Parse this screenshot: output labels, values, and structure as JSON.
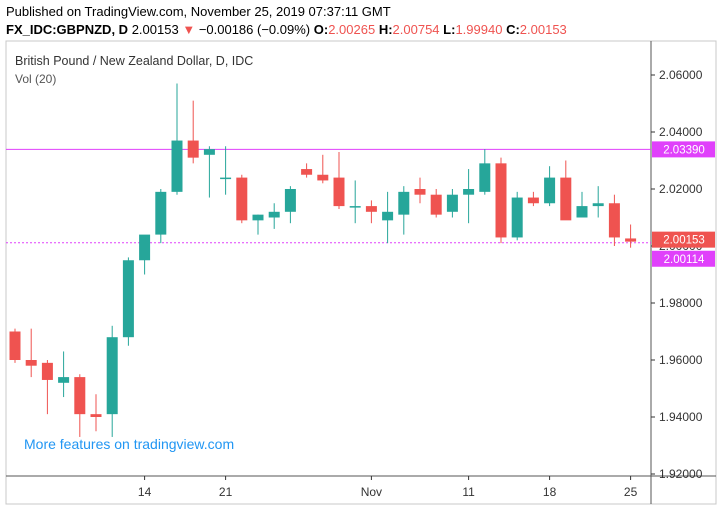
{
  "header": {
    "published": "Published on TradingView.com, November 25, 2019 07:37:11 GMT",
    "symbol": "FX_IDC:GBPNZD, D",
    "price": "2.00153",
    "arrow": "▼",
    "change": "−0.00186 (−0.09%)",
    "o_label": "O:",
    "o_value": "2.00265",
    "h_label": "H:",
    "h_value": "2.00754",
    "l_label": "L:",
    "l_value": "1.99940",
    "c_label": "C:",
    "c_value": "2.00153"
  },
  "overlay": {
    "title": "British Pound / New Zealand Dollar, D, IDC",
    "volume": "Vol (20)"
  },
  "watermark": "More features on tradingview.com",
  "colors": {
    "up": "#26a69a",
    "down": "#ef5350",
    "hline": "#e040fb",
    "axis": "#333333"
  },
  "chart_data": {
    "type": "candlestick",
    "title": "British Pound / New Zealand Dollar, D, IDC",
    "y_ticks": [
      "2.06000",
      "2.04000",
      "2.02000",
      "2.00000",
      "1.98000",
      "1.96000",
      "1.94000",
      "1.92000"
    ],
    "ylim": [
      1.918,
      2.065
    ],
    "x_ticks": [
      {
        "index": 8,
        "label": "14"
      },
      {
        "index": 13,
        "label": "21"
      },
      {
        "index": 22,
        "label": "Nov"
      },
      {
        "index": 28,
        "label": "11"
      },
      {
        "index": 33,
        "label": "18"
      },
      {
        "index": 38,
        "label": "25"
      }
    ],
    "horizontal_lines": [
      {
        "value": 2.0339,
        "label": "2.03390"
      },
      {
        "value": 2.00114,
        "label": "2.00114"
      }
    ],
    "last_price": {
      "value": 2.00153,
      "label": "2.00153"
    },
    "candles": [
      {
        "o": 1.97,
        "h": 1.971,
        "l": 1.959,
        "c": 1.96
      },
      {
        "o": 1.96,
        "h": 1.971,
        "l": 1.954,
        "c": 1.958
      },
      {
        "o": 1.959,
        "h": 1.96,
        "l": 1.941,
        "c": 1.953
      },
      {
        "o": 1.952,
        "h": 1.963,
        "l": 1.947,
        "c": 1.954
      },
      {
        "o": 1.954,
        "h": 1.955,
        "l": 1.933,
        "c": 1.941
      },
      {
        "o": 1.941,
        "h": 1.948,
        "l": 1.935,
        "c": 1.94
      },
      {
        "o": 1.941,
        "h": 1.972,
        "l": 1.933,
        "c": 1.968
      },
      {
        "o": 1.968,
        "h": 1.996,
        "l": 1.965,
        "c": 1.995
      },
      {
        "o": 1.995,
        "h": 2.003,
        "l": 1.99,
        "c": 2.004
      },
      {
        "o": 2.004,
        "h": 2.02,
        "l": 2.001,
        "c": 2.019
      },
      {
        "o": 2.019,
        "h": 2.057,
        "l": 2.018,
        "c": 2.037
      },
      {
        "o": 2.037,
        "h": 2.051,
        "l": 2.029,
        "c": 2.031
      },
      {
        "o": 2.032,
        "h": 2.035,
        "l": 2.017,
        "c": 2.034
      },
      {
        "o": 2.024,
        "h": 2.035,
        "l": 2.018,
        "c": 2.024
      },
      {
        "o": 2.024,
        "h": 2.025,
        "l": 2.008,
        "c": 2.009
      },
      {
        "o": 2.009,
        "h": 2.011,
        "l": 2.004,
        "c": 2.011
      },
      {
        "o": 2.01,
        "h": 2.015,
        "l": 2.006,
        "c": 2.012
      },
      {
        "o": 2.012,
        "h": 2.021,
        "l": 2.008,
        "c": 2.02
      },
      {
        "o": 2.027,
        "h": 2.029,
        "l": 2.024,
        "c": 2.025
      },
      {
        "o": 2.025,
        "h": 2.032,
        "l": 2.022,
        "c": 2.023
      },
      {
        "o": 2.024,
        "h": 2.033,
        "l": 2.013,
        "c": 2.014
      },
      {
        "o": 2.014,
        "h": 2.023,
        "l": 2.008,
        "c": 2.014
      },
      {
        "o": 2.014,
        "h": 2.016,
        "l": 2.008,
        "c": 2.012
      },
      {
        "o": 2.009,
        "h": 2.019,
        "l": 2.001,
        "c": 2.012
      },
      {
        "o": 2.011,
        "h": 2.021,
        "l": 2.004,
        "c": 2.019
      },
      {
        "o": 2.02,
        "h": 2.024,
        "l": 2.015,
        "c": 2.018
      },
      {
        "o": 2.018,
        "h": 2.02,
        "l": 2.01,
        "c": 2.011
      },
      {
        "o": 2.012,
        "h": 2.02,
        "l": 2.01,
        "c": 2.018
      },
      {
        "o": 2.018,
        "h": 2.027,
        "l": 2.008,
        "c": 2.02
      },
      {
        "o": 2.019,
        "h": 2.034,
        "l": 2.018,
        "c": 2.029
      },
      {
        "o": 2.029,
        "h": 2.031,
        "l": 2.001,
        "c": 2.003
      },
      {
        "o": 2.003,
        "h": 2.019,
        "l": 2.002,
        "c": 2.017
      },
      {
        "o": 2.017,
        "h": 2.019,
        "l": 2.014,
        "c": 2.015
      },
      {
        "o": 2.015,
        "h": 2.028,
        "l": 2.014,
        "c": 2.024
      },
      {
        "o": 2.024,
        "h": 2.03,
        "l": 2.01,
        "c": 2.009
      },
      {
        "o": 2.01,
        "h": 2.019,
        "l": 2.01,
        "c": 2.014
      },
      {
        "o": 2.014,
        "h": 2.021,
        "l": 2.01,
        "c": 2.015
      },
      {
        "o": 2.015,
        "h": 2.018,
        "l": 2.0,
        "c": 2.003
      },
      {
        "o": 2.00265,
        "h": 2.00754,
        "l": 1.9994,
        "c": 2.00153
      }
    ]
  }
}
